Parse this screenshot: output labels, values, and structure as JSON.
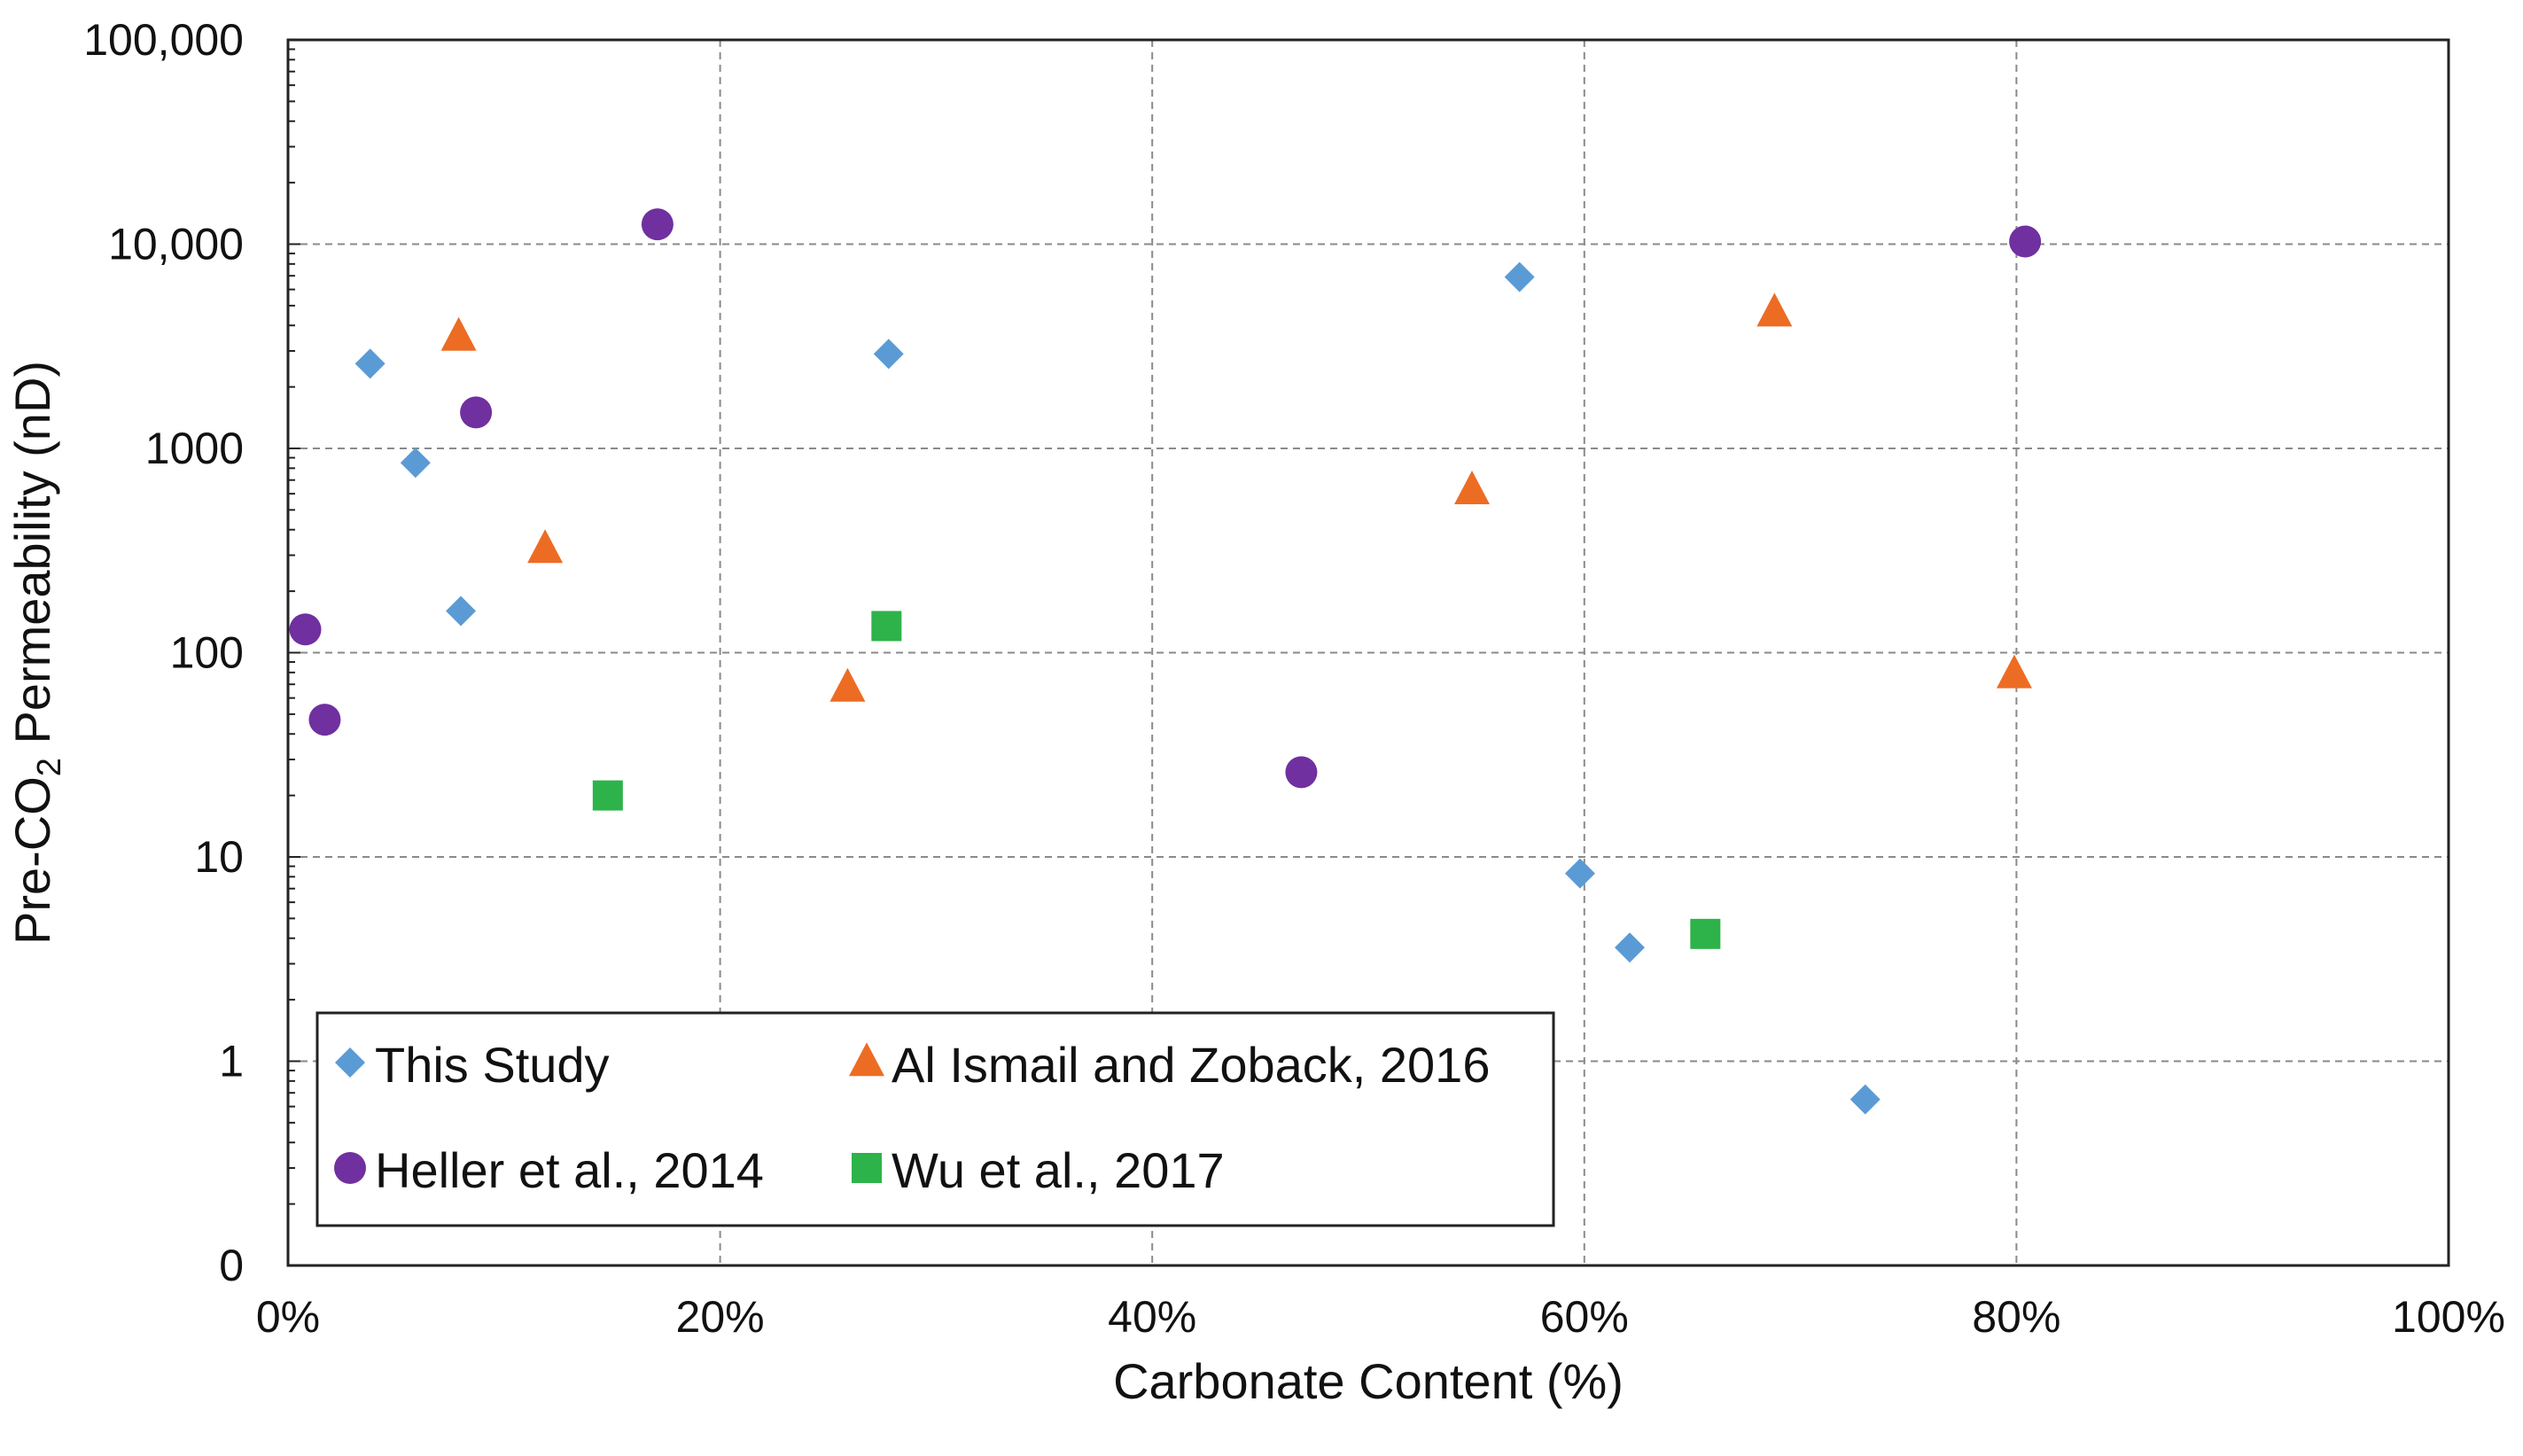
{
  "chart_data": {
    "type": "scatter",
    "title": "",
    "xlabel": "Carbonate Content (%)",
    "ylabel_main": "Pre-CO",
    "ylabel_sub": "2",
    "ylabel_rest": " Permeability (nD)",
    "xlim": [
      0,
      100
    ],
    "ylim_log10": [
      -1,
      5
    ],
    "y_scale": "log",
    "grid": true,
    "legend_position": "bottom-left",
    "x_ticks": [
      {
        "value": 0,
        "label": "0%"
      },
      {
        "value": 20,
        "label": "20%"
      },
      {
        "value": 40,
        "label": "40%"
      },
      {
        "value": 60,
        "label": "60%"
      },
      {
        "value": 80,
        "label": "80%"
      },
      {
        "value": 100,
        "label": "100%"
      }
    ],
    "y_ticks": [
      {
        "value": 0.1,
        "label": "0"
      },
      {
        "value": 1,
        "label": "1"
      },
      {
        "value": 10,
        "label": "10"
      },
      {
        "value": 100,
        "label": "100"
      },
      {
        "value": 1000,
        "label": "1000"
      },
      {
        "value": 10000,
        "label": "10,000"
      },
      {
        "value": 100000,
        "label": "100,000"
      }
    ],
    "series": [
      {
        "name": "This Study",
        "marker": "diamond",
        "color": "#5b9bd5",
        "points": [
          {
            "x": 3.8,
            "y": 2600
          },
          {
            "x": 5.9,
            "y": 850
          },
          {
            "x": 8.0,
            "y": 160
          },
          {
            "x": 27.8,
            "y": 2900
          },
          {
            "x": 57.0,
            "y": 6900
          },
          {
            "x": 59.8,
            "y": 8.3
          },
          {
            "x": 62.1,
            "y": 3.6
          },
          {
            "x": 73.0,
            "y": 0.65
          }
        ]
      },
      {
        "name": "Al Ismail and Zoback, 2016",
        "marker": "triangle",
        "color": "#ed6c23",
        "points": [
          {
            "x": 7.9,
            "y": 3500
          },
          {
            "x": 11.9,
            "y": 320
          },
          {
            "x": 25.9,
            "y": 67
          },
          {
            "x": 54.8,
            "y": 620
          },
          {
            "x": 68.8,
            "y": 4600
          },
          {
            "x": 79.9,
            "y": 78
          }
        ]
      },
      {
        "name": "Heller et al., 2014",
        "marker": "circle",
        "color": "#7030a0",
        "points": [
          {
            "x": 0.8,
            "y": 130
          },
          {
            "x": 1.7,
            "y": 47
          },
          {
            "x": 8.7,
            "y": 1500
          },
          {
            "x": 17.1,
            "y": 12500
          },
          {
            "x": 46.9,
            "y": 26
          },
          {
            "x": 80.4,
            "y": 10300
          }
        ]
      },
      {
        "name": "Wu et al., 2017",
        "marker": "square",
        "color": "#2db34a",
        "points": [
          {
            "x": 14.8,
            "y": 20
          },
          {
            "x": 27.7,
            "y": 135
          },
          {
            "x": 65.6,
            "y": 4.2
          }
        ]
      }
    ]
  }
}
